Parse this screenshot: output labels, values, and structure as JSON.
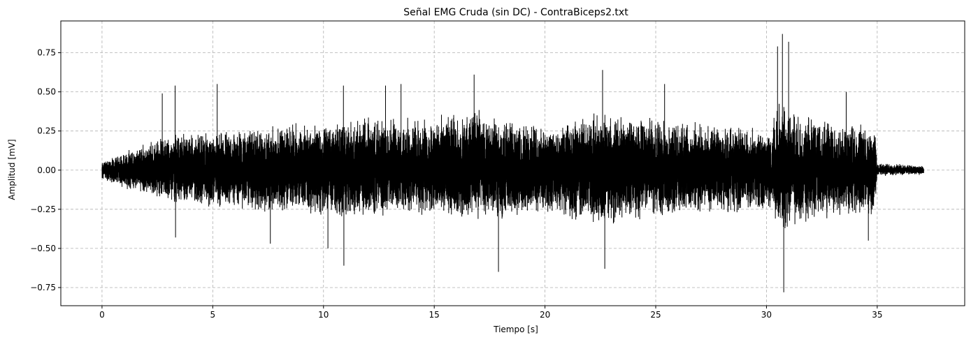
{
  "chart_data": {
    "type": "line",
    "title": "Señal EMG Cruda (sin DC) - ContraBiceps2.txt",
    "xlabel": "Tiempo [s]",
    "ylabel": "Amplitud [mV]",
    "xlim": [
      -1.86,
      38.95
    ],
    "ylim": [
      -0.866,
      0.953
    ],
    "xticks": [
      0,
      5,
      10,
      15,
      20,
      25,
      30,
      35
    ],
    "xtick_labels": [
      "0",
      "5",
      "10",
      "15",
      "20",
      "25",
      "30",
      "35"
    ],
    "yticks": [
      -0.75,
      -0.5,
      -0.25,
      0.0,
      0.25,
      0.5,
      0.75
    ],
    "ytick_labels": [
      "−0.75",
      "−0.50",
      "−0.25",
      "0.00",
      "0.25",
      "0.50",
      "0.75"
    ],
    "grid": true,
    "line_color": "#000000",
    "series": [
      {
        "name": "",
        "x_start": 0,
        "x_end": 37.1,
        "envelope": {
          "t": [
            0,
            1,
            2.7,
            3.3,
            5,
            7.6,
            10,
            10.8,
            13.5,
            15,
            16.8,
            17.9,
            20,
            22.7,
            25,
            27.5,
            30.1,
            30.6,
            30.75,
            31.2,
            33.6,
            34.9,
            35.0,
            37.1
          ],
          "top": [
            0.06,
            0.12,
            0.22,
            0.25,
            0.25,
            0.3,
            0.32,
            0.34,
            0.35,
            0.35,
            0.4,
            0.34,
            0.3,
            0.38,
            0.35,
            0.3,
            0.27,
            0.45,
            0.5,
            0.38,
            0.32,
            0.3,
            0.05,
            0.03
          ],
          "bottom": [
            -0.06,
            -0.12,
            -0.2,
            -0.22,
            -0.24,
            -0.28,
            -0.3,
            -0.33,
            -0.3,
            -0.3,
            -0.32,
            -0.32,
            -0.3,
            -0.38,
            -0.3,
            -0.28,
            -0.28,
            -0.4,
            -0.45,
            -0.35,
            -0.3,
            -0.3,
            -0.04,
            -0.03
          ]
        },
        "spikes": [
          {
            "t": 2.72,
            "y": 0.49
          },
          {
            "t": 3.3,
            "y": 0.54
          },
          {
            "t": 3.32,
            "y": -0.43
          },
          {
            "t": 5.2,
            "y": 0.55
          },
          {
            "t": 7.6,
            "y": -0.47
          },
          {
            "t": 10.2,
            "y": -0.5
          },
          {
            "t": 10.9,
            "y": 0.54
          },
          {
            "t": 10.92,
            "y": -0.61
          },
          {
            "t": 12.8,
            "y": 0.54
          },
          {
            "t": 13.5,
            "y": 0.55
          },
          {
            "t": 16.8,
            "y": 0.61
          },
          {
            "t": 17.9,
            "y": -0.65
          },
          {
            "t": 22.6,
            "y": 0.64
          },
          {
            "t": 22.7,
            "y": -0.63
          },
          {
            "t": 25.4,
            "y": 0.55
          },
          {
            "t": 30.5,
            "y": 0.79
          },
          {
            "t": 30.72,
            "y": 0.87
          },
          {
            "t": 30.78,
            "y": -0.78
          },
          {
            "t": 31.0,
            "y": 0.82
          },
          {
            "t": 33.6,
            "y": 0.5
          },
          {
            "t": 34.6,
            "y": -0.45
          }
        ]
      }
    ]
  }
}
